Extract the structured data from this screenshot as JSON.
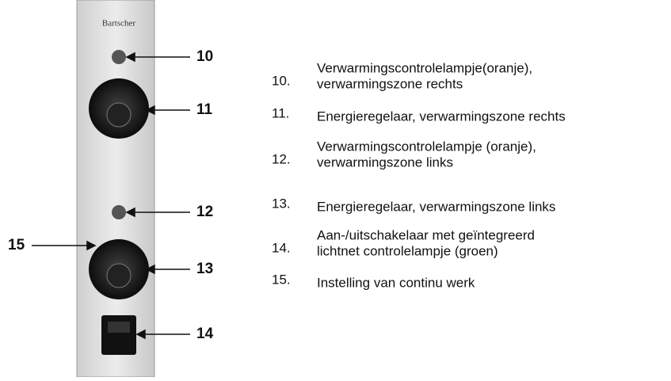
{
  "brand": "Bartscher",
  "callouts": [
    "10",
    "11",
    "12",
    "13",
    "14",
    "15"
  ],
  "legend": [
    {
      "number": "10.",
      "lines": [
        "Verwarmingscontrolelampje(oranje),",
        "verwarmingszone rechts"
      ]
    },
    {
      "number": "11.",
      "lines": [
        "Energieregelaar, verwarmingszone rechts"
      ]
    },
    {
      "number": "12.",
      "lines": [
        "Verwarmingscontrolelampje (oranje),",
        "verwarmingszone links"
      ]
    },
    {
      "number": "13.",
      "lines": [
        "Energieregelaar, verwarmingszone links"
      ]
    },
    {
      "number": "14.",
      "lines": [
        "Aan-/uitschakelaar met geïntegreerd",
        "lichtnet controlelampje (groen)"
      ]
    },
    {
      "number": "15.",
      "lines": [
        "Instelling van continu werk"
      ]
    }
  ]
}
